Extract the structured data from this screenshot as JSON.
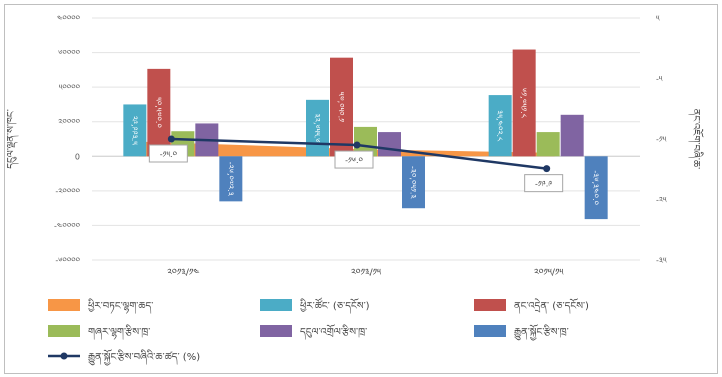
{
  "chart_data": {
    "type": "bar",
    "categories": [
      "༢༠༡༣/༡༤",
      "༢༠༡༣/༡༥",
      "༢༠༡༥/༡༥"
    ],
    "primary_ylim": [
      -60000,
      80000
    ],
    "primary_ticks": [
      "༤༠༠༠༠",
      "༦༠༠༠༠",
      "༥༠༠༠༠",
      "༢༠༠༠༠",
      "0",
      "-༢༠༠༠༠",
      "-༤༠༠༠༠",
      "-༦༠༠༠༠"
    ],
    "secondary_ylim": [
      -35,
      5
    ],
    "secondary_ticks": [
      "༥",
      "-༥",
      "-༡༥",
      "-༢༥",
      "-༣༥"
    ],
    "ylabel_left": "དངུལ་ལྡན་ས་ཁང་",
    "ylabel_right": "ནང་འཇོག་བཞི་ཆ་",
    "series": [
      {
        "name": "ཕྱིར་བཏང་ལྷག་ཆད་",
        "kind": "area",
        "color": "#f79646",
        "values": [
          8500,
          4000,
          2000
        ]
      },
      {
        "name": "ཕྱིར་ཚོང་ (ཅ་དངོས་)",
        "kind": "bar",
        "color": "#4bacc6",
        "values": [
          29993.5,
          32655.6,
          35402.8
        ]
      },
      {
        "name": "ནང་འདྲེན་ (ཅ་དངོས་)",
        "kind": "bar",
        "color": "#c0504d",
        "values": [
          50570.0,
          57050.1,
          61751.8
        ]
      },
      {
        "name": "གཞར་ལྷག་རྩིས་ཁྲ་",
        "kind": "bar",
        "color": "#9bbb59",
        "values": [
          14500,
          17000,
          14000
        ]
      },
      {
        "name": "དངུལ་འགྲོལ་རྩིས་ཁྲ་",
        "kind": "bar",
        "color": "#8064a2",
        "values": [
          19000,
          14000,
          24000
        ]
      },
      {
        "name": "རྒྱུན་སྐྱོང་རྩིས་ཁྲ་",
        "kind": "bar",
        "color": "#4f81bd",
        "values": [
          -26072.3,
          -30051.3,
          -36340.0
        ]
      },
      {
        "name": "རྒྱུན་སྐྱོང་རྩིས་བཞིའི་ཆ་ཚད་ (%)",
        "kind": "line",
        "axis": "secondary",
        "color": "#1f3864",
        "values": [
          -15.0,
          -16.0,
          -19.9
        ]
      }
    ],
    "bar_labels": [
      [
        "༢༩,༩༩༣.༥",
        "༥༠,༥༧༠.༠",
        "-༢༦,༠༧༢.༣"
      ],
      [
        "༣༢,༦༥༥.༦",
        "༥༧,༠༥༠.༡",
        "-༣༠,༠༥༡.༣"
      ],
      [
        "༣༥,༤༠༢.༨",
        "༦༡,༧༥༡.༨",
        "-༣༦,༣༤༠.༠"
      ]
    ],
    "line_labels": [
      "-༡༥.༠",
      "-༡༦.༠",
      "-༡༩.༩"
    ],
    "legend_placement": "bottom",
    "grid": true
  }
}
